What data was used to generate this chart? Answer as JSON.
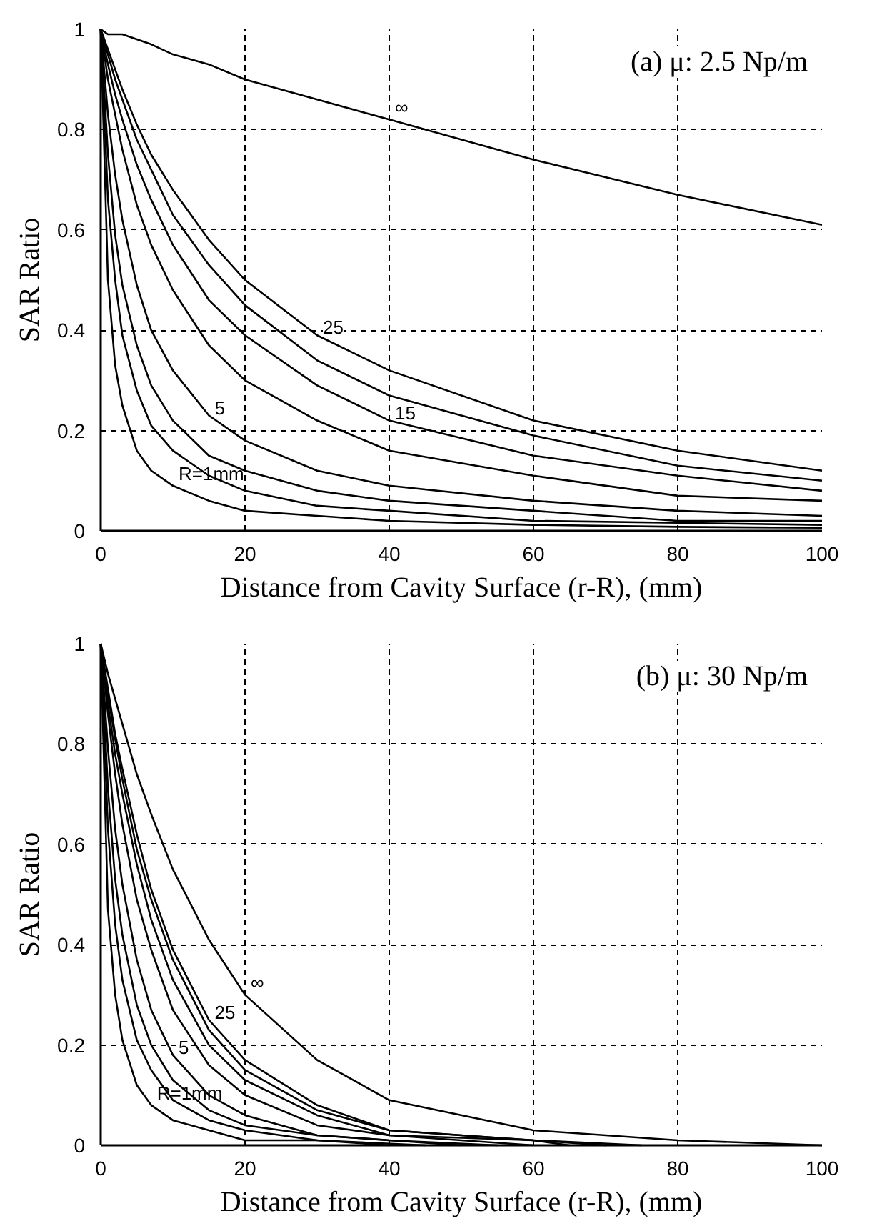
{
  "chart_data": [
    {
      "type": "line",
      "title": "(a) μ: 2.5 Np/m",
      "xlabel": "Distance from Cavity Surface (r-R), (mm)",
      "ylabel": "SAR Ratio",
      "x": [
        0,
        1,
        2,
        3,
        5,
        7,
        10,
        15,
        20,
        30,
        40,
        60,
        80,
        100
      ],
      "xlim": [
        0,
        100
      ],
      "ylim": [
        0,
        1
      ],
      "xticks": [
        0,
        20,
        40,
        60,
        80,
        100
      ],
      "yticks": [
        0,
        0.2,
        0.4,
        0.6,
        0.8,
        1
      ],
      "grid": true,
      "line_style": "solid",
      "series": [
        {
          "color": "#000000",
          "values": [
            1,
            0.99,
            0.99,
            0.99,
            0.98,
            0.97,
            0.95,
            0.93,
            0.9,
            0.86,
            0.82,
            0.74,
            0.67,
            0.61
          ]
        },
        {
          "color": "#000000",
          "values": [
            1,
            0.96,
            0.92,
            0.88,
            0.81,
            0.75,
            0.68,
            0.58,
            0.5,
            0.39,
            0.32,
            0.22,
            0.16,
            0.12
          ]
        },
        {
          "color": "#000000",
          "values": [
            1,
            0.95,
            0.9,
            0.86,
            0.78,
            0.72,
            0.63,
            0.53,
            0.45,
            0.34,
            0.27,
            0.19,
            0.13,
            0.1
          ]
        },
        {
          "color": "#000000",
          "values": [
            1,
            0.93,
            0.87,
            0.82,
            0.73,
            0.66,
            0.57,
            0.46,
            0.39,
            0.29,
            0.22,
            0.15,
            0.11,
            0.08
          ]
        },
        {
          "color": "#000000",
          "values": [
            1,
            0.9,
            0.83,
            0.76,
            0.65,
            0.57,
            0.48,
            0.37,
            0.3,
            0.22,
            0.16,
            0.11,
            0.07,
            0.06
          ]
        },
        {
          "color": "#000000",
          "values": [
            1,
            0.83,
            0.71,
            0.62,
            0.49,
            0.4,
            0.32,
            0.23,
            0.18,
            0.12,
            0.09,
            0.06,
            0.04,
            0.03
          ]
        },
        {
          "color": "#000000",
          "values": [
            1,
            0.75,
            0.59,
            0.49,
            0.37,
            0.29,
            0.22,
            0.15,
            0.12,
            0.08,
            0.06,
            0.04,
            0.02,
            0.02
          ]
        },
        {
          "color": "#000000",
          "values": [
            1,
            0.66,
            0.5,
            0.39,
            0.28,
            0.21,
            0.16,
            0.11,
            0.08,
            0.05,
            0.04,
            0.02,
            0.016,
            0.012
          ]
        },
        {
          "color": "#000000",
          "values": [
            1,
            0.5,
            0.33,
            0.25,
            0.16,
            0.12,
            0.09,
            0.06,
            0.04,
            0.03,
            0.02,
            0.012,
            0.008,
            0.006
          ]
        }
      ],
      "annotations": [
        {
          "text": "∞",
          "x": 40,
          "y": 0.82
        },
        {
          "text": "25",
          "x": 30,
          "y": 0.39
        },
        {
          "text": "15",
          "x": 40,
          "y": 0.22
        },
        {
          "text": "5",
          "x": 15,
          "y": 0.23
        },
        {
          "text": "R=1mm",
          "x": 10,
          "y": 0.09
        }
      ]
    },
    {
      "type": "line",
      "title": "(b) μ: 30 Np/m",
      "xlabel": "Distance from Cavity Surface (r-R), (mm)",
      "ylabel": "SAR Ratio",
      "x": [
        0,
        1,
        2,
        3,
        5,
        7,
        10,
        15,
        20,
        30,
        40,
        60,
        80,
        100
      ],
      "xlim": [
        0,
        100
      ],
      "ylim": [
        0,
        1
      ],
      "xticks": [
        0,
        20,
        40,
        60,
        80,
        100
      ],
      "yticks": [
        0,
        0.2,
        0.4,
        0.6,
        0.8,
        1
      ],
      "grid": true,
      "line_style": "solid",
      "series": [
        {
          "color": "#000000",
          "values": [
            1,
            0.94,
            0.89,
            0.84,
            0.74,
            0.66,
            0.55,
            0.41,
            0.3,
            0.17,
            0.09,
            0.03,
            0.01,
            0
          ]
        },
        {
          "color": "#000000",
          "x": [
            0,
            1,
            2,
            3,
            5,
            7,
            10,
            15,
            20,
            30,
            40,
            60,
            75
          ],
          "values": [
            1,
            0.91,
            0.82,
            0.75,
            0.62,
            0.51,
            0.39,
            0.25,
            0.17,
            0.08,
            0.03,
            0.01,
            0
          ]
        },
        {
          "color": "#000000",
          "x": [
            0,
            1,
            2,
            3,
            5,
            7,
            10,
            15,
            20,
            30,
            40,
            60,
            70
          ],
          "values": [
            1,
            0.9,
            0.81,
            0.73,
            0.59,
            0.49,
            0.37,
            0.23,
            0.15,
            0.07,
            0.03,
            0.01,
            0
          ]
        },
        {
          "color": "#000000",
          "x": [
            0,
            1,
            2,
            3,
            5,
            7,
            10,
            15,
            20,
            30,
            40,
            60,
            65
          ],
          "values": [
            1,
            0.88,
            0.78,
            0.7,
            0.56,
            0.45,
            0.33,
            0.2,
            0.13,
            0.06,
            0.02,
            0.01,
            0
          ]
        },
        {
          "color": "#000000",
          "x": [
            0,
            1,
            2,
            3,
            5,
            7,
            10,
            15,
            20,
            30,
            40,
            60
          ],
          "values": [
            1,
            0.86,
            0.74,
            0.64,
            0.49,
            0.39,
            0.27,
            0.16,
            0.1,
            0.04,
            0.02,
            0
          ]
        },
        {
          "color": "#000000",
          "x": [
            0,
            1,
            2,
            3,
            5,
            7,
            10,
            15,
            20,
            30,
            40,
            55
          ],
          "values": [
            1,
            0.79,
            0.63,
            0.52,
            0.37,
            0.27,
            0.18,
            0.1,
            0.06,
            0.02,
            0.01,
            0
          ]
        },
        {
          "color": "#000000",
          "x": [
            0,
            1,
            2,
            3,
            5,
            7,
            10,
            15,
            20,
            30,
            40,
            50
          ],
          "values": [
            1,
            0.71,
            0.53,
            0.42,
            0.28,
            0.2,
            0.13,
            0.07,
            0.04,
            0.02,
            0.01,
            0
          ]
        },
        {
          "color": "#000000",
          "x": [
            0,
            1,
            2,
            3,
            5,
            7,
            10,
            15,
            20,
            30,
            45
          ],
          "values": [
            1,
            0.63,
            0.44,
            0.33,
            0.21,
            0.15,
            0.09,
            0.05,
            0.03,
            0.01,
            0
          ]
        },
        {
          "color": "#000000",
          "x": [
            0,
            1,
            2,
            3,
            5,
            7,
            10,
            15,
            20,
            30,
            40
          ],
          "values": [
            1,
            0.47,
            0.3,
            0.21,
            0.12,
            0.08,
            0.05,
            0.03,
            0.01,
            0.01,
            0
          ]
        }
      ],
      "annotations": [
        {
          "text": "∞",
          "x": 20,
          "y": 0.3
        },
        {
          "text": "25",
          "x": 15,
          "y": 0.25
        },
        {
          "text": "5",
          "x": 10,
          "y": 0.18
        },
        {
          "text": "R=1mm",
          "x": 7,
          "y": 0.08
        }
      ]
    }
  ]
}
